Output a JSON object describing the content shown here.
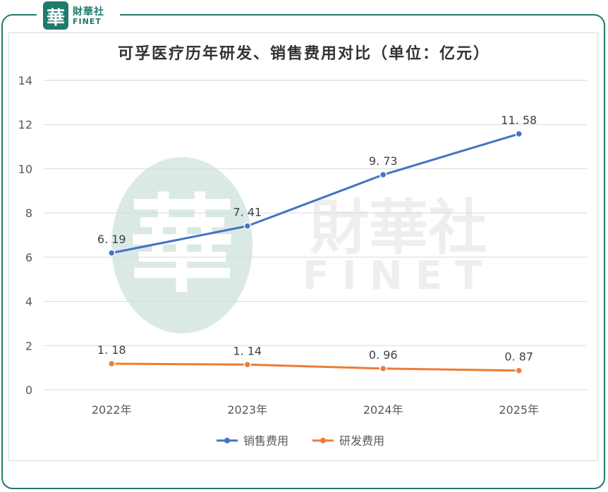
{
  "header": {
    "logo_seal_char": "華",
    "logo_name_cn": "財華社",
    "logo_name_en": "FINET"
  },
  "watermark": {
    "seal_char": "華",
    "name_cn": "財華社",
    "name_en": "FINET"
  },
  "colors": {
    "brand": "#1f7a6b",
    "sales": "#4472c4",
    "rd": "#ed7d31",
    "grid": "#d9d9d9",
    "axis_text": "#595959"
  },
  "chart_data": {
    "type": "line",
    "title": "可孚医疗历年研发、销售费用对比（单位：亿元）",
    "categories": [
      "2022年",
      "2023年",
      "2024年",
      "2025年"
    ],
    "ylim": [
      0,
      14
    ],
    "yticks": [
      "0",
      "2",
      "4",
      "6",
      "8",
      "10",
      "12",
      "14"
    ],
    "grid": true,
    "legend_position": "bottom",
    "series": [
      {
        "name": "销售费用",
        "values": [
          6.19,
          7.41,
          9.73,
          11.58
        ],
        "labels": [
          "6. 19",
          "7. 41",
          "9. 73",
          "11. 58"
        ]
      },
      {
        "name": "研发费用",
        "values": [
          1.18,
          1.14,
          0.96,
          0.87
        ],
        "labels": [
          "1. 18",
          "1. 14",
          "0. 96",
          "0. 87"
        ]
      }
    ]
  }
}
